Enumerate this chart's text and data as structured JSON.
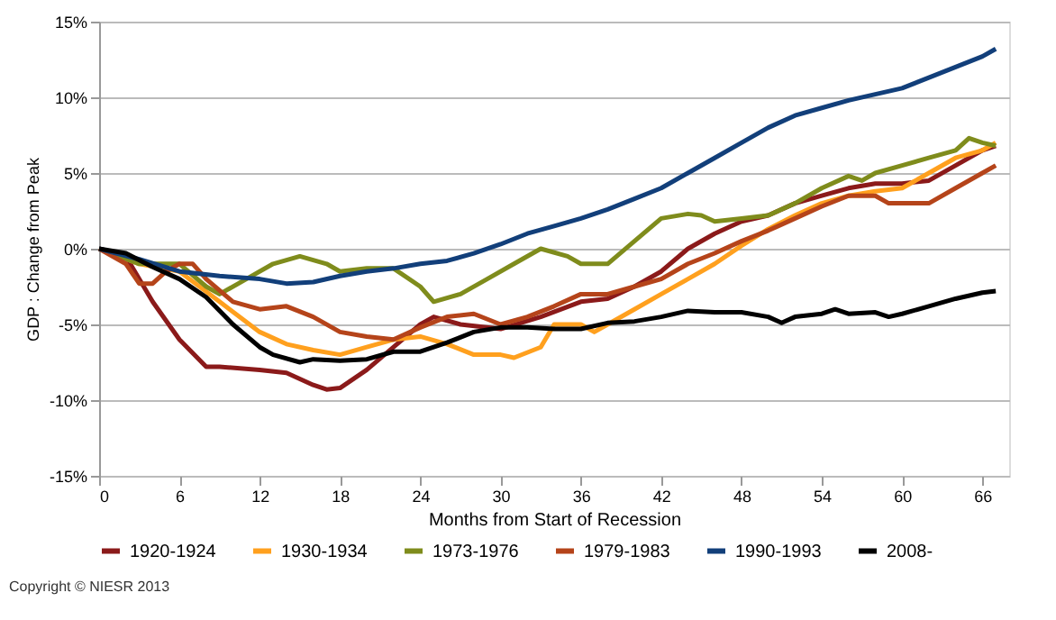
{
  "chart_data": {
    "type": "line",
    "xlabel": "Months from Start of Recession",
    "ylabel": "GDP : Change from Peak",
    "annotations": [
      "Copyright © NIESR 2013"
    ],
    "xlim": [
      0,
      68
    ],
    "xticks": [
      0,
      6,
      12,
      18,
      24,
      30,
      36,
      42,
      48,
      54,
      60,
      66
    ],
    "ylim": [
      -15,
      15
    ],
    "yticks": [
      {
        "value": -15,
        "label": "-15%"
      },
      {
        "value": -10,
        "label": "-10%"
      },
      {
        "value": -5,
        "label": "-5%"
      },
      {
        "value": 0,
        "label": "0%"
      },
      {
        "value": 5,
        "label": "5%"
      },
      {
        "value": 10,
        "label": "10%"
      },
      {
        "value": 15,
        "label": "15%"
      }
    ],
    "grid": "y",
    "legend": "bottom",
    "marker": "none",
    "line_style": "solid",
    "series": [
      {
        "name": "1920-1924",
        "color": "#8b1a1a",
        "x": [
          0,
          2,
          4,
          6,
          8,
          9,
          12,
          14,
          16,
          17,
          18,
          20,
          22,
          24,
          25,
          27,
          30,
          33,
          36,
          38,
          40,
          42,
          44,
          46,
          48,
          50,
          52,
          54,
          56,
          58,
          60,
          62,
          64,
          66,
          67
        ],
        "values": [
          0,
          -0.5,
          -3.5,
          -6,
          -7.8,
          -7.8,
          -8,
          -8.2,
          -9,
          -9.3,
          -9.2,
          -8,
          -6.5,
          -5,
          -4.5,
          -5,
          -5.3,
          -4.5,
          -3.5,
          -3.3,
          -2.5,
          -1.5,
          0,
          1,
          1.8,
          2.2,
          3,
          3.5,
          4,
          4.3,
          4.3,
          4.5,
          5.5,
          6.5,
          6.8
        ]
      },
      {
        "name": "1930-1934",
        "color": "#ffa01e",
        "x": [
          0,
          3,
          6,
          9,
          12,
          14,
          16,
          18,
          20,
          22,
          24,
          26,
          28,
          30,
          31,
          33,
          34,
          36,
          37,
          38,
          40,
          42,
          44,
          46,
          48,
          50,
          52,
          54,
          56,
          58,
          60,
          62,
          64,
          66,
          67
        ],
        "values": [
          0,
          -1,
          -1.5,
          -3.5,
          -5.5,
          -6.3,
          -6.7,
          -7,
          -6.5,
          -6,
          -5.8,
          -6.3,
          -7,
          -7,
          -7.2,
          -6.5,
          -5,
          -5,
          -5.5,
          -5,
          -4,
          -3,
          -2,
          -1,
          0.2,
          1.3,
          2.2,
          3,
          3.5,
          3.8,
          4,
          5,
          6,
          6.5,
          7
        ]
      },
      {
        "name": "1973-1976",
        "color": "#7f8c1c",
        "x": [
          0,
          3,
          6,
          8,
          9,
          11,
          13,
          15,
          17,
          18,
          20,
          22,
          24,
          25,
          27,
          29,
          31,
          33,
          35,
          36,
          38,
          40,
          42,
          44,
          45,
          46,
          48,
          50,
          52,
          54,
          56,
          57,
          58,
          60,
          62,
          64,
          65,
          66,
          67
        ],
        "values": [
          0,
          -1,
          -1,
          -2.5,
          -3,
          -2,
          -1,
          -0.5,
          -1,
          -1.5,
          -1.3,
          -1.3,
          -2.5,
          -3.5,
          -3,
          -2,
          -1,
          0,
          -0.5,
          -1,
          -1,
          0.5,
          2,
          2.3,
          2.2,
          1.8,
          2,
          2.2,
          3,
          4,
          4.8,
          4.5,
          5,
          5.5,
          6,
          6.5,
          7.3,
          7,
          6.8
        ]
      },
      {
        "name": "1979-1983",
        "color": "#b5441a",
        "x": [
          0,
          2,
          3,
          4,
          5,
          6,
          7,
          8,
          10,
          12,
          14,
          16,
          18,
          20,
          22,
          24,
          26,
          28,
          30,
          32,
          34,
          36,
          38,
          40,
          42,
          44,
          46,
          48,
          50,
          52,
          54,
          56,
          58,
          59,
          62,
          64,
          66,
          67
        ],
        "values": [
          0,
          -1,
          -2.3,
          -2.3,
          -1.5,
          -1,
          -1,
          -2,
          -3.5,
          -4,
          -3.8,
          -4.5,
          -5.5,
          -5.8,
          -6,
          -5.2,
          -4.5,
          -4.3,
          -5,
          -4.5,
          -3.8,
          -3,
          -3,
          -2.5,
          -2,
          -1,
          -0.3,
          0.5,
          1.2,
          2,
          2.8,
          3.5,
          3.5,
          3,
          3,
          4,
          5,
          5.5
        ]
      },
      {
        "name": "1990-1993",
        "color": "#123f7a",
        "x": [
          0,
          3,
          6,
          9,
          12,
          14,
          16,
          18,
          20,
          22,
          24,
          26,
          28,
          30,
          32,
          34,
          36,
          38,
          40,
          42,
          44,
          46,
          48,
          50,
          52,
          54,
          56,
          58,
          60,
          62,
          64,
          66,
          67
        ],
        "values": [
          0,
          -0.7,
          -1.5,
          -1.8,
          -2,
          -2.3,
          -2.2,
          -1.8,
          -1.5,
          -1.3,
          -1,
          -0.8,
          -0.3,
          0.3,
          1,
          1.5,
          2,
          2.6,
          3.3,
          4,
          5,
          6,
          7,
          8,
          8.8,
          9.3,
          9.8,
          10.2,
          10.6,
          11.3,
          12,
          12.7,
          13.2
        ]
      },
      {
        "name": "2008-",
        "color": "#000000",
        "x": [
          0,
          2,
          4,
          6,
          8,
          10,
          12,
          13,
          15,
          16,
          18,
          20,
          22,
          24,
          26,
          28,
          30,
          32,
          34,
          36,
          38,
          40,
          42,
          44,
          46,
          48,
          50,
          51,
          52,
          54,
          55,
          56,
          58,
          59,
          60,
          62,
          64,
          66,
          67
        ],
        "values": [
          0,
          -0.3,
          -1.2,
          -2,
          -3.2,
          -5,
          -6.5,
          -7,
          -7.5,
          -7.3,
          -7.4,
          -7.3,
          -6.8,
          -6.8,
          -6.2,
          -5.5,
          -5.2,
          -5.2,
          -5.3,
          -5.3,
          -4.9,
          -4.8,
          -4.5,
          -4.1,
          -4.2,
          -4.2,
          -4.5,
          -4.9,
          -4.5,
          -4.3,
          -4,
          -4.3,
          -4.2,
          -4.5,
          -4.3,
          -3.8,
          -3.3,
          -2.9,
          -2.8
        ]
      }
    ]
  }
}
